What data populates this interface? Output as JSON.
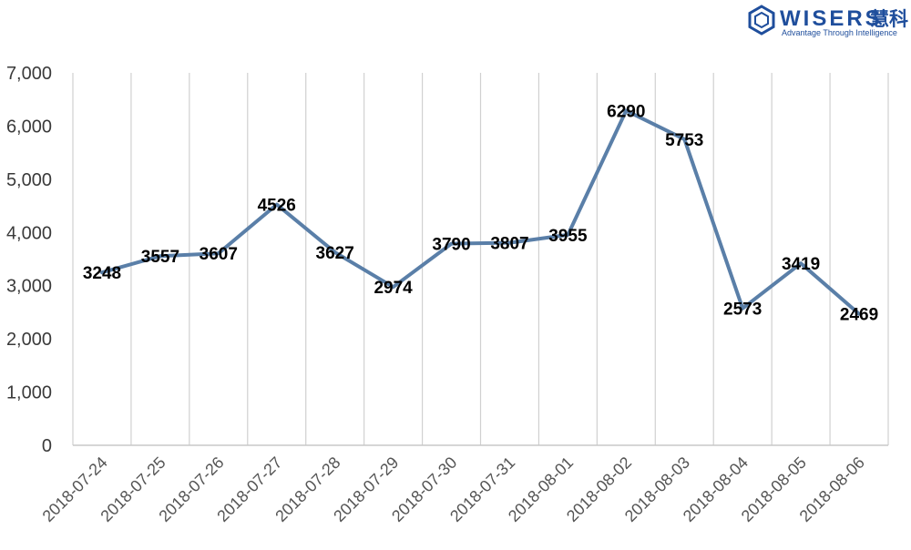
{
  "brand": {
    "name": "WISERS",
    "name_cn": "慧科",
    "tagline": "Advantage Through Intelligence",
    "color": "#1f4e9c"
  },
  "chart_data": {
    "type": "line",
    "title": "",
    "xlabel": "",
    "ylabel": "",
    "categories": [
      "2018-07-24",
      "2018-07-25",
      "2018-07-26",
      "2018-07-27",
      "2018-07-28",
      "2018-07-29",
      "2018-07-30",
      "2018-07-31",
      "2018-08-01",
      "2018-08-02",
      "2018-08-03",
      "2018-08-04",
      "2018-08-05",
      "2018-08-06"
    ],
    "series": [
      {
        "values": [
          3248,
          3557,
          3607,
          4526,
          3627,
          2974,
          3790,
          3807,
          3955,
          6290,
          5753,
          2573,
          3419,
          2469
        ],
        "color": "#5a7fa8"
      }
    ],
    "ylim": [
      0,
      7000
    ],
    "yticks": [
      "0",
      "1,000",
      "2,000",
      "3,000",
      "4,000",
      "5,000",
      "6,000",
      "7,000"
    ],
    "grid": "vertical",
    "data_labels": true
  }
}
